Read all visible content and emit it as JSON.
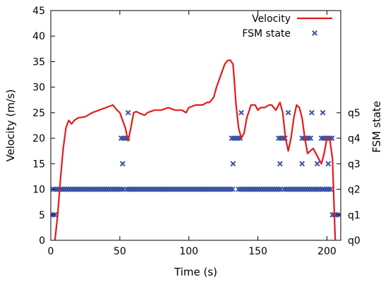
{
  "chart_data": {
    "type": "line",
    "title": "",
    "xlabel": "Time (s)",
    "ylabel": "Velocity (m/s)",
    "y2label": "FSM state",
    "xlim": [
      0,
      210
    ],
    "ylim": [
      0,
      45
    ],
    "x_ticks": [
      0,
      50,
      100,
      150,
      200
    ],
    "y_ticks": [
      0,
      5,
      10,
      15,
      20,
      25,
      30,
      35,
      40,
      45
    ],
    "y2_ticks": [
      {
        "label": "q0",
        "y": 0
      },
      {
        "label": "q1",
        "y": 5
      },
      {
        "label": "q2",
        "y": 10
      },
      {
        "label": "q3",
        "y": 15
      },
      {
        "label": "q4",
        "y": 20
      },
      {
        "label": "q5",
        "y": 25
      }
    ],
    "grid": false,
    "legend_position": "top-right",
    "series": [
      {
        "name": "Velocity",
        "kind": "line",
        "color": "#e41a1c",
        "x": [
          3,
          5,
          7,
          9,
          11,
          13,
          15,
          17,
          20,
          25,
          30,
          35,
          40,
          45,
          48,
          50,
          52,
          54,
          56,
          58,
          60,
          62,
          65,
          68,
          70,
          75,
          80,
          85,
          90,
          95,
          98,
          100,
          105,
          110,
          113,
          115,
          118,
          120,
          122,
          124,
          126,
          128,
          130,
          132,
          133,
          134,
          136,
          138,
          140,
          142,
          145,
          148,
          150,
          152,
          155,
          158,
          160,
          163,
          166,
          168,
          170,
          172,
          174,
          176,
          178,
          180,
          182,
          184,
          186,
          188,
          190,
          192,
          194,
          196,
          198,
          200,
          202,
          204,
          206
        ],
        "y": [
          0,
          5,
          12,
          18,
          22,
          23.5,
          22.8,
          23.5,
          24,
          24.2,
          25,
          25.5,
          26,
          26.5,
          25.5,
          25,
          23.5,
          22,
          19.5,
          22,
          25,
          25.2,
          24.8,
          24.5,
          25,
          25.5,
          25.5,
          26,
          25.5,
          25.5,
          25,
          26,
          26.5,
          26.5,
          27,
          27,
          28,
          30,
          31.5,
          33,
          34.5,
          35.2,
          35.3,
          34.5,
          31,
          27,
          22,
          20,
          21,
          24,
          26.5,
          26.5,
          25.5,
          26,
          26,
          26.5,
          26.5,
          25.5,
          27,
          25,
          20,
          17.5,
          20,
          24,
          26.5,
          26,
          24,
          20,
          17,
          17.5,
          18,
          17,
          16,
          15,
          17,
          20,
          20,
          16,
          0
        ]
      },
      {
        "name": "FSM state",
        "kind": "scatter",
        "color": "#3a52a8",
        "segments": [
          {
            "y": 5,
            "x_start": 0,
            "x_end": 4
          },
          {
            "y": 10,
            "x_start": 2,
            "x_end": 53
          },
          {
            "y": 10,
            "x_start": 55,
            "x_end": 133
          },
          {
            "y": 10,
            "x_start": 136,
            "x_end": 167
          },
          {
            "y": 10,
            "x_start": 169,
            "x_end": 182
          },
          {
            "y": 10,
            "x_start": 183,
            "x_end": 197
          },
          {
            "y": 10,
            "x_start": 198,
            "x_end": 203
          },
          {
            "y": 20,
            "x_start": 51,
            "x_end": 57
          },
          {
            "y": 20,
            "x_start": 131,
            "x_end": 138
          },
          {
            "y": 20,
            "x_start": 165,
            "x_end": 171
          },
          {
            "y": 20,
            "x_start": 182,
            "x_end": 189
          },
          {
            "y": 20,
            "x_start": 196,
            "x_end": 204
          },
          {
            "y": 5,
            "x_start": 204,
            "x_end": 210
          }
        ],
        "singles": [
          {
            "x": 52,
            "y": 15
          },
          {
            "x": 56,
            "y": 25
          },
          {
            "x": 132,
            "y": 15
          },
          {
            "x": 138,
            "y": 25
          },
          {
            "x": 166,
            "y": 15
          },
          {
            "x": 172,
            "y": 25
          },
          {
            "x": 182,
            "y": 15
          },
          {
            "x": 189,
            "y": 25
          },
          {
            "x": 193,
            "y": 15
          },
          {
            "x": 197,
            "y": 25
          },
          {
            "x": 201,
            "y": 15
          }
        ]
      }
    ]
  }
}
